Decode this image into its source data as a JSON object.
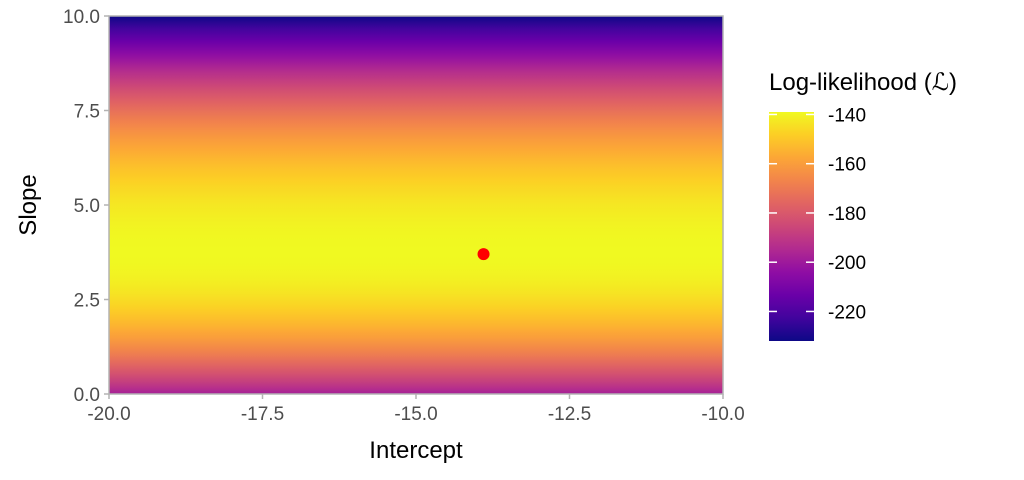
{
  "chart_data": {
    "type": "heatmap",
    "xlabel": "Intercept",
    "ylabel": "Slope",
    "xlim": [
      -20.0,
      -10.0
    ],
    "ylim": [
      0.0,
      10.0
    ],
    "x_ticks": [
      -20.0,
      -17.5,
      -15.0,
      -12.5,
      -10.0
    ],
    "x_tick_labels": [
      "-20.0",
      "-17.5",
      "-15.0",
      "-12.5",
      "-10.0"
    ],
    "y_ticks": [
      0.0,
      2.5,
      5.0,
      7.5,
      10.0
    ],
    "y_tick_labels": [
      "0.0",
      "2.5",
      "5.0",
      "7.5",
      "10.0"
    ],
    "fill": {
      "description_of_surface": "log-likelihood varies with slope only; peak near slope 3.7",
      "peak_slope": 3.7,
      "peak_value": -139,
      "min_value": -232,
      "value_at_slope_0": -198,
      "value_at_slope_10": -232,
      "colormap": "plasma"
    },
    "point": {
      "x": -13.9,
      "y": 3.7,
      "color": "#ff0000"
    },
    "legend": {
      "title": "Log-likelihood (ℒ)",
      "position": "right",
      "range": [
        -232,
        -139
      ],
      "ticks": [
        -140,
        -160,
        -180,
        -200,
        -220
      ],
      "tick_labels": [
        "-140",
        "-160",
        "-180",
        "-200",
        "-220"
      ]
    },
    "grid": false
  }
}
